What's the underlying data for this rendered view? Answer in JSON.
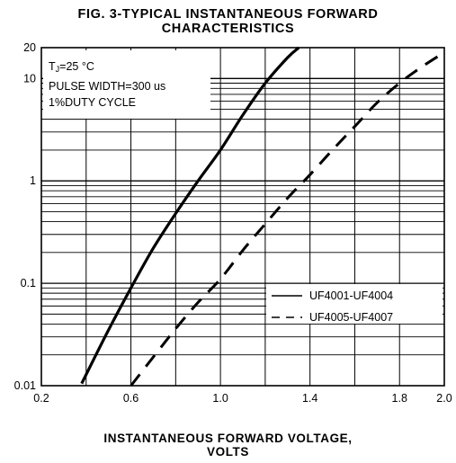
{
  "chart_data": {
    "type": "line",
    "title_line1": "FIG. 3-TYPICAL INSTANTANEOUS FORWARD",
    "title_line2": "CHARACTERISTICS",
    "xlabel_line1": "INSTANTANEOUS FORWARD VOLTAGE,",
    "xlabel_line2": "VOLTS",
    "ylabel": "",
    "xlim": [
      0.2,
      2.0
    ],
    "ylim": [
      0.01,
      20
    ],
    "y_scale": "log",
    "grid": true,
    "x_ticks": [
      "0.2",
      "0.6",
      "1.0",
      "1.4",
      "1.8",
      "2.0"
    ],
    "y_ticks": [
      "0.01",
      "0.1",
      "1",
      "10",
      "20"
    ],
    "annotation": {
      "line1_pre": "T",
      "line1_sub": "J",
      "line1_post": "=25 °C",
      "line2": "PULSE WIDTH=300 us",
      "line3": "1%DUTY CYCLE"
    },
    "legend_position": "bottom-right",
    "series": [
      {
        "name": "UF4001-UF4004",
        "style": "solid",
        "x": [
          0.38,
          0.5,
          0.6,
          0.7,
          0.8,
          0.9,
          1.0,
          1.1,
          1.2,
          1.3,
          1.35
        ],
        "y": [
          0.0105,
          0.035,
          0.09,
          0.22,
          0.48,
          1.0,
          2.0,
          4.4,
          9.0,
          16.0,
          20.0
        ]
      },
      {
        "name": "UF4005-UF4007",
        "style": "dashed",
        "x": [
          0.6,
          0.7,
          0.8,
          0.9,
          1.0,
          1.1,
          1.2,
          1.3,
          1.4,
          1.5,
          1.6,
          1.7,
          1.8,
          1.9,
          2.0
        ],
        "y": [
          0.01,
          0.019,
          0.036,
          0.065,
          0.11,
          0.21,
          0.38,
          0.68,
          1.15,
          2.0,
          3.4,
          5.8,
          9.0,
          13.0,
          18.0
        ]
      }
    ]
  }
}
